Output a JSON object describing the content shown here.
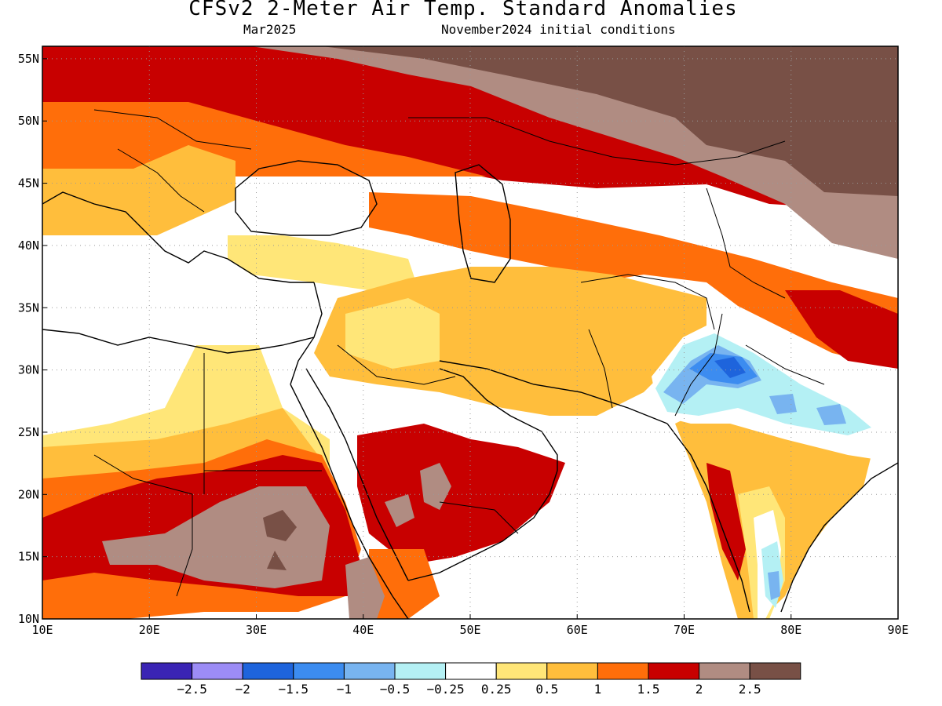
{
  "title": "CFSv2 2-Meter Air Temp. Standard Anomalies",
  "valid_month": "Mar2025",
  "initial_conditions": "November2024 initial conditions",
  "chart_data": {
    "type": "heatmap",
    "title": "CFSv2 2-Meter Air Temp. Standard Anomalies",
    "lon_range": [
      10,
      90
    ],
    "lat_range": [
      10,
      56
    ],
    "x_ticks": [
      "10E",
      "20E",
      "30E",
      "40E",
      "50E",
      "60E",
      "70E",
      "80E",
      "90E"
    ],
    "y_ticks": [
      "10N",
      "15N",
      "20N",
      "25N",
      "30N",
      "35N",
      "40N",
      "45N",
      "50N",
      "55N"
    ],
    "grid": true,
    "colorbar": {
      "colors": [
        "#3a24b4",
        "#9c8cf6",
        "#1e64dc",
        "#3c8cf0",
        "#78b4f0",
        "#b4f0f4",
        "#ffffff",
        "#ffe678",
        "#ffbe3c",
        "#ff6e0a",
        "#c80000",
        "#b08c82",
        "#785046"
      ],
      "labels": [
        "-2.5",
        "-2",
        "-1.5",
        "-1",
        "-0.5",
        "-0.25",
        "0.25",
        "0.5",
        "1",
        "1.5",
        "2",
        "2.5"
      ]
    }
  }
}
